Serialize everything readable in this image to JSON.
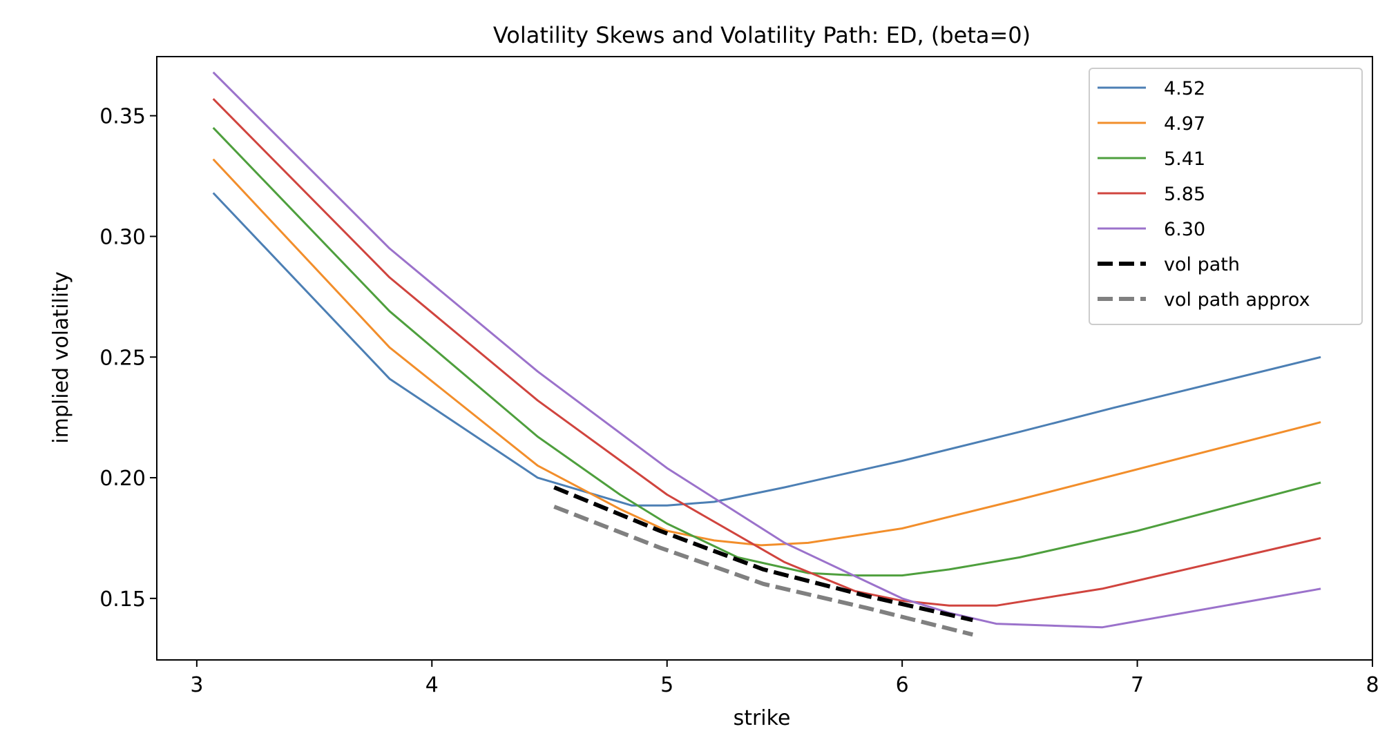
{
  "chart_data": {
    "type": "line",
    "title": "Volatility Skews and Volatility Path: ED, (beta=0)",
    "xlabel": "strike",
    "ylabel": "implied volatility",
    "xlim": [
      2.83,
      8.0
    ],
    "ylim": [
      0.1245,
      0.3745
    ],
    "xticks": [
      3,
      4,
      5,
      6,
      7,
      8
    ],
    "xtick_labels": [
      "3",
      "4",
      "5",
      "6",
      "7",
      "8"
    ],
    "yticks": [
      0.15,
      0.2,
      0.25,
      0.3,
      0.35
    ],
    "ytick_labels": [
      "0.15",
      "0.20",
      "0.25",
      "0.30",
      "0.35"
    ],
    "grid": false,
    "legend_position": "top-right",
    "series": [
      {
        "name": "4.52",
        "color": "#4c7fb4",
        "style": "solid",
        "x": [
          3.07,
          3.82,
          4.45,
          4.85,
          5.0,
          5.2,
          5.5,
          6.0,
          6.5,
          6.9,
          7.78
        ],
        "y": [
          0.318,
          0.241,
          0.2,
          0.1885,
          0.1885,
          0.19,
          0.196,
          0.207,
          0.219,
          0.229,
          0.25
        ]
      },
      {
        "name": "4.97",
        "color": "#f28e2b",
        "style": "solid",
        "x": [
          3.07,
          3.82,
          4.45,
          4.8,
          5.0,
          5.2,
          5.4,
          5.6,
          6.0,
          6.5,
          7.78
        ],
        "y": [
          0.332,
          0.254,
          0.205,
          0.187,
          0.178,
          0.174,
          0.172,
          0.173,
          0.179,
          0.191,
          0.223
        ]
      },
      {
        "name": "5.41",
        "color": "#4e9f3d",
        "style": "solid",
        "x": [
          3.07,
          3.82,
          4.45,
          4.8,
          5.0,
          5.3,
          5.6,
          5.8,
          6.0,
          6.2,
          6.5,
          7.0,
          7.78
        ],
        "y": [
          0.345,
          0.269,
          0.217,
          0.193,
          0.181,
          0.167,
          0.1605,
          0.1595,
          0.1595,
          0.162,
          0.167,
          0.178,
          0.198
        ]
      },
      {
        "name": "5.85",
        "color": "#d0443e",
        "style": "solid",
        "x": [
          3.07,
          3.82,
          4.45,
          5.0,
          5.5,
          5.8,
          6.0,
          6.2,
          6.4,
          6.85,
          7.78
        ],
        "y": [
          0.357,
          0.283,
          0.232,
          0.193,
          0.165,
          0.153,
          0.149,
          0.147,
          0.147,
          0.154,
          0.175
        ]
      },
      {
        "name": "6.30",
        "color": "#9b72cb",
        "style": "solid",
        "x": [
          3.07,
          3.82,
          4.45,
          5.0,
          5.5,
          6.0,
          6.2,
          6.4,
          6.85,
          7.78
        ],
        "y": [
          0.368,
          0.295,
          0.244,
          0.204,
          0.173,
          0.15,
          0.144,
          0.1395,
          0.138,
          0.154
        ]
      },
      {
        "name": "vol path",
        "color": "#000000",
        "style": "dashed",
        "x": [
          4.52,
          4.97,
          5.41,
          5.85,
          6.3
        ],
        "y": [
          0.196,
          0.178,
          0.162,
          0.151,
          0.141
        ]
      },
      {
        "name": "vol path approx",
        "color": "#808080",
        "style": "dashed",
        "x": [
          4.52,
          4.97,
          5.41,
          5.85,
          6.3
        ],
        "y": [
          0.188,
          0.171,
          0.156,
          0.146,
          0.135
        ]
      }
    ]
  }
}
